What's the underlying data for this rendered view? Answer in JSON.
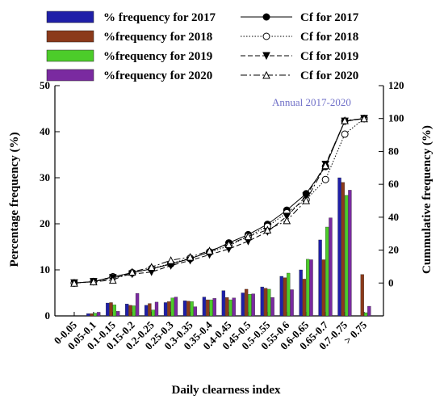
{
  "chart_data": {
    "type": "bar",
    "annotation": "Annual 2017-2020",
    "xlabel": "Daily clearness index",
    "ylabel_left": "Percentage frequency (%)",
    "ylabel_right": "Cummulative frequency (%)",
    "ylim_left": [
      0,
      50
    ],
    "yticks_left": [
      "0",
      "10",
      "20",
      "30",
      "40",
      "50"
    ],
    "ylim_right": [
      -20,
      120
    ],
    "yticks_right": [
      "0",
      "20",
      "40",
      "60",
      "80",
      "100",
      "120"
    ],
    "grid": false,
    "legend_position": "top",
    "categories": [
      "0-0.05",
      "0.05-0.1",
      "0.1-0.15",
      "0.15-0.2",
      "0.2-0.25",
      "0.25-0.3",
      "0.3-0.35",
      "0.35-0.4",
      "0.4-0.45",
      "0.45-0.5",
      "0.5-0.55",
      "0.55-0.6",
      "0.6-0.65",
      "0.65-0.7",
      "0.7-0.75",
      "> 0.75"
    ],
    "bar_series": [
      {
        "name": "% frequency for 2017",
        "color": "#1f1fa8",
        "values": [
          0,
          0.5,
          2.8,
          2.6,
          2.3,
          2.9,
          3.3,
          4.1,
          5.5,
          5.0,
          6.3,
          8.6,
          10.0,
          16.5,
          30.0,
          0
        ]
      },
      {
        "name": "%frequency for 2018",
        "color": "#8b3a1a",
        "values": [
          0,
          0.5,
          2.9,
          2.3,
          2.7,
          3.1,
          3.2,
          3.5,
          4.0,
          5.8,
          6.0,
          8.3,
          8.0,
          12.2,
          29.0,
          9.0
        ]
      },
      {
        "name": "%frequency for 2019",
        "color": "#4ccc2a",
        "values": [
          0,
          0.6,
          2.4,
          2.2,
          1.3,
          3.9,
          3.1,
          3.5,
          3.5,
          4.7,
          5.8,
          9.3,
          12.3,
          19.3,
          26.2,
          0.7
        ]
      },
      {
        "name": "%frequency for 2020",
        "color": "#7a2aa0",
        "values": [
          0,
          0.8,
          1.0,
          4.9,
          3.0,
          4.1,
          2.0,
          3.8,
          3.9,
          4.8,
          4.0,
          5.7,
          12.2,
          21.3,
          27.3,
          2.1
        ]
      }
    ],
    "line_series": [
      {
        "name": "Cf for 2017",
        "marker": "filled-circle",
        "dash": "solid",
        "values": [
          0,
          0.9,
          3.7,
          6.3,
          8.6,
          11.5,
          14.8,
          18.9,
          24.4,
          29.4,
          35.7,
          44.3,
          54.3,
          70.8,
          98.5,
          100
        ]
      },
      {
        "name": "Cf for 2018",
        "marker": "open-circle",
        "dash": "dotted",
        "values": [
          0,
          0.9,
          3.8,
          6.1,
          8.8,
          11.9,
          15.1,
          18.6,
          22.6,
          28.4,
          34.4,
          42.7,
          50.7,
          62.9,
          90.5,
          100
        ]
      },
      {
        "name": "Cf for 2019",
        "marker": "filled-triangle-down",
        "dash": "dashed",
        "values": [
          0,
          0.8,
          3.2,
          5.4,
          6.7,
          10.6,
          13.7,
          17.2,
          20.7,
          25.4,
          31.2,
          40.5,
          52.8,
          72.1,
          98.3,
          100
        ]
      },
      {
        "name": "Cf for 2020",
        "marker": "open-triangle-up",
        "dash": "dash-dot",
        "values": [
          0,
          0.8,
          1.8,
          6.7,
          9.7,
          13.8,
          15.8,
          19.6,
          23.5,
          28.3,
          32.3,
          38.0,
          50.2,
          71.5,
          98.8,
          100
        ]
      }
    ]
  }
}
